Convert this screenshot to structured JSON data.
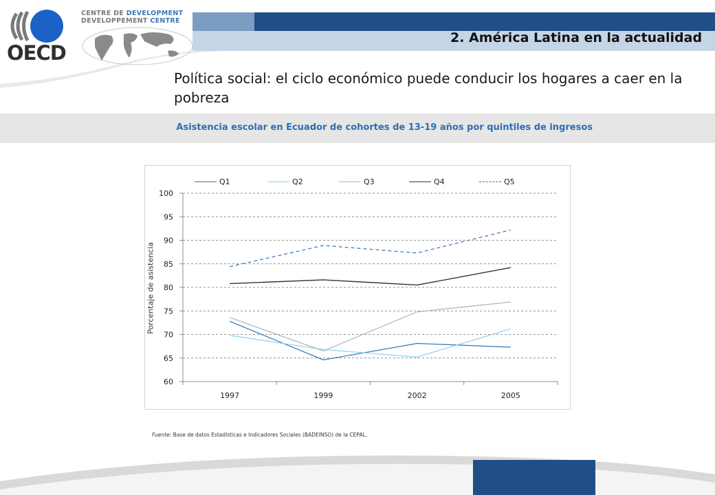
{
  "header": {
    "logo_text": "OECD",
    "dc_line1_a": "CENTRE DE ",
    "dc_line1_b": "DEVELOPMENT",
    "dc_line2_a": "DEVELOPPEMENT ",
    "dc_line2_b": "CENTRE",
    "section_title": "2. América Latina en la actualidad"
  },
  "slide_title": "Política social: el ciclo económico puede conducir los hogares a caer en la pobreza",
  "chart_subtitle": "Asistencia escolar en Ecuador de cohortes de 13-19 años por quintiles de ingresos",
  "source": {
    "label": "Fuente:",
    "text": " Base de datos Estadísticas e Indicadores Sociales (BADEINSO) de la CEPAL."
  },
  "colors": {
    "brand_blue": "#1f4f86",
    "accent_blue": "#2c6eb4",
    "grid": "#6e6e6e",
    "band": "#e6e6e6"
  },
  "chart_data": {
    "type": "line",
    "title": "",
    "xlabel": "",
    "ylabel": "Porcentaje de asistencia",
    "x": [
      "1997",
      "1999",
      "2002",
      "2005"
    ],
    "ylim": [
      60,
      100
    ],
    "yticks": [
      60,
      65,
      70,
      75,
      80,
      85,
      90,
      95,
      100
    ],
    "grid": true,
    "legend_position": "top",
    "series": [
      {
        "name": "Q1",
        "values": [
          72.8,
          64.6,
          68.1,
          67.3
        ],
        "color": "#2e75b6",
        "dash": "solid",
        "width": 1.2
      },
      {
        "name": "Q2",
        "values": [
          69.8,
          66.8,
          65.2,
          71.2
        ],
        "color": "#8fd0ef",
        "dash": "solid",
        "width": 1.2
      },
      {
        "name": "Q3",
        "values": [
          73.6,
          66.5,
          74.8,
          76.9
        ],
        "color": "#b3b3b3",
        "dash": "solid",
        "width": 1.2
      },
      {
        "name": "Q4",
        "values": [
          80.8,
          81.6,
          80.5,
          84.2
        ],
        "color": "#333333",
        "dash": "solid",
        "width": 1.4
      },
      {
        "name": "Q5",
        "values": [
          84.4,
          88.9,
          87.3,
          92.2
        ],
        "color": "#2e75b6",
        "dash": "dashed",
        "width": 1.2
      }
    ]
  }
}
